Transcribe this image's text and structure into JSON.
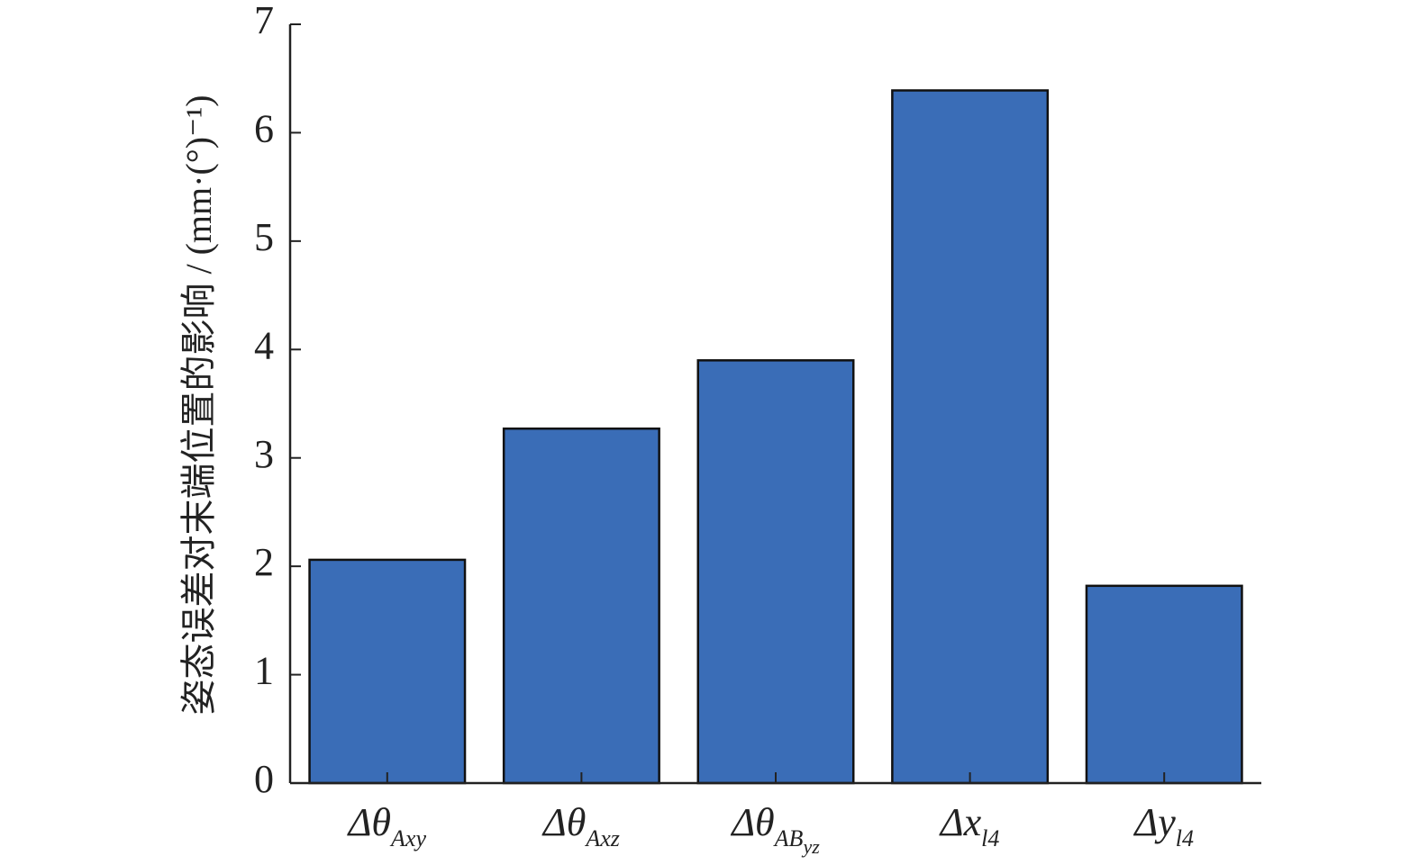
{
  "chart_data": {
    "type": "bar",
    "ylabel": "姿态误差对末端位置的影响 / (mm·(°)⁻¹)",
    "categories": [
      {
        "base": "Δθ",
        "sub": "Axy"
      },
      {
        "base": "Δθ",
        "sub": "Axz"
      },
      {
        "base": "Δθ",
        "sub": "AB",
        "subsub": "yz"
      },
      {
        "base": "Δx",
        "sub": "l4"
      },
      {
        "base": "Δy",
        "sub": "l4"
      }
    ],
    "values": [
      2.06,
      3.27,
      3.9,
      6.39,
      1.82
    ],
    "color": "#3a6db7",
    "ylim": [
      0,
      7
    ],
    "yticks": [
      0,
      1,
      2,
      3,
      4,
      5,
      6,
      7
    ],
    "grid": false
  }
}
